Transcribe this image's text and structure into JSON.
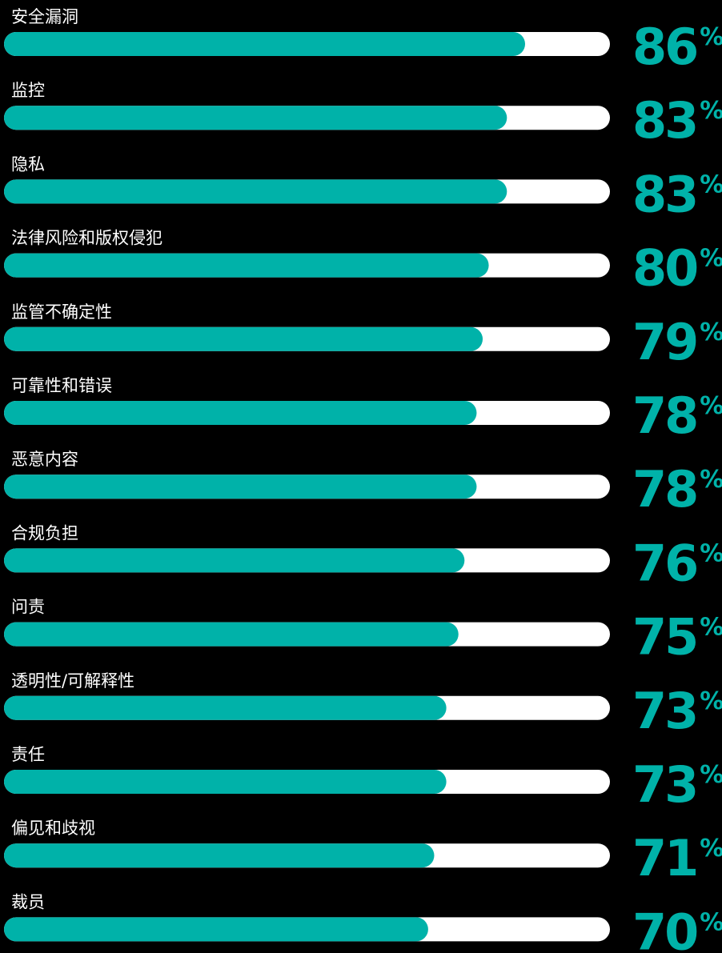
{
  "chart_data": {
    "type": "bar",
    "categories": [
      "安全漏洞",
      "监控",
      "隐私",
      "法律风险和版权侵犯",
      "监管不确定性",
      "可靠性和错误",
      "恶意内容",
      "合规负担",
      "问责",
      "透明性/可解释性",
      "责任",
      "偏见和歧视",
      "裁员"
    ],
    "values": [
      86,
      83,
      83,
      80,
      79,
      78,
      78,
      76,
      75,
      73,
      73,
      71,
      70
    ],
    "value_labels": [
      "86%",
      "83%",
      "83%",
      "80%",
      "79%",
      "78%",
      "78%",
      "76%",
      "75%",
      "73%",
      "73%",
      "71%",
      "70%"
    ],
    "color": "#00b2a9",
    "track_color": "#ffffff",
    "xlim": [
      0,
      100
    ]
  }
}
